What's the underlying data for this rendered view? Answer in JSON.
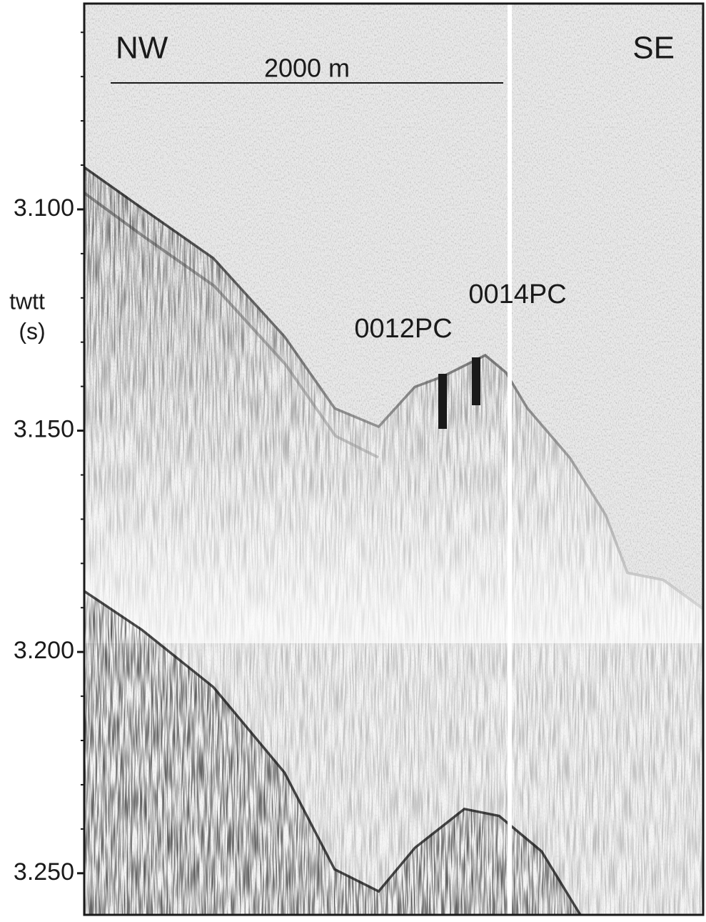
{
  "figure": {
    "y_label": [
      "twtt",
      "(s)"
    ],
    "ylim": [
      3.0535,
      3.2594
    ],
    "yticks": [
      {
        "value": 3.1,
        "label": "3.100"
      },
      {
        "value": 3.15,
        "label": "3.150"
      },
      {
        "value": 3.2,
        "label": "3.200"
      },
      {
        "value": 3.25,
        "label": "3.250"
      }
    ],
    "minor_yticks": [
      3.06,
      3.07,
      3.08,
      3.09,
      3.11,
      3.12,
      3.13,
      3.14,
      3.16,
      3.17,
      3.18,
      3.19,
      3.21,
      3.22,
      3.23,
      3.24
    ],
    "labels": {
      "left": "NW",
      "right": "SE",
      "scale": "2000 m",
      "core_a": "0012PC",
      "core_b": "0014PC"
    }
  }
}
